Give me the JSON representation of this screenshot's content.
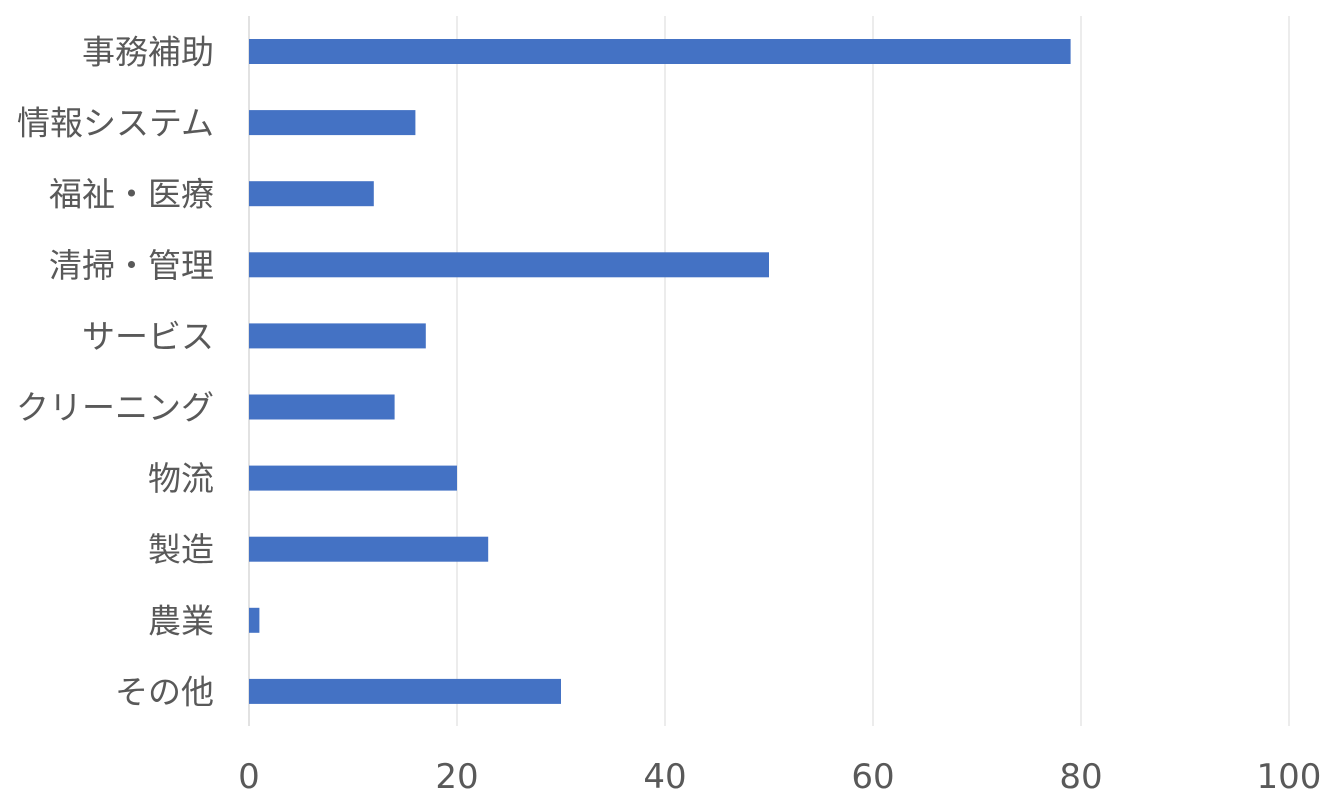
{
  "chart_data": {
    "type": "bar",
    "orientation": "horizontal",
    "categories": [
      "事務補助",
      "情報システム",
      "福祉・医療",
      "清掃・管理",
      "サービス",
      "クリーニング",
      "物流",
      "製造",
      "農業",
      "その他"
    ],
    "values": [
      79,
      16,
      12,
      50,
      17,
      14,
      20,
      23,
      1,
      30
    ],
    "xlim": [
      0,
      100
    ],
    "xticks": [
      "0",
      "20",
      "40",
      "60",
      "80",
      "100"
    ],
    "title": "",
    "xlabel": "",
    "ylabel": "",
    "grid": true,
    "legend": "none",
    "bar_color": "#4472C4"
  }
}
